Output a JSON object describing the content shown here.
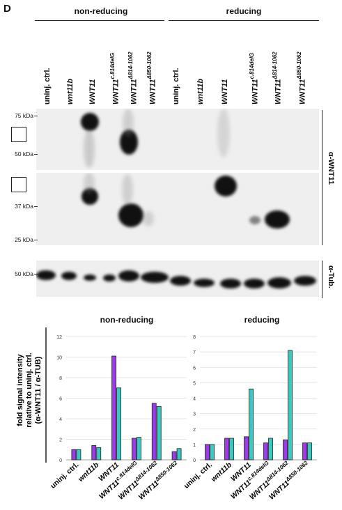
{
  "panel_letter": "D",
  "conditions": [
    "non-reducing",
    "reducing"
  ],
  "lanes": [
    {
      "base": "uninj. ctrl.",
      "sup": "",
      "italic": false
    },
    {
      "base": "wnt11b",
      "sup": "",
      "italic": true
    },
    {
      "base": "WNT11",
      "sup": "",
      "italic": true
    },
    {
      "base": "WNT11",
      "sup": "c.814delG",
      "italic": true
    },
    {
      "base": "WNT11",
      "sup": "Δ814-1062",
      "italic": true
    },
    {
      "base": "WNT11",
      "sup": "Δ850-1062",
      "italic": true
    }
  ],
  "markers": {
    "blot1": [
      "75 kDa",
      "50 kDa"
    ],
    "blot2": [
      "37 kDa",
      "25 kDa"
    ],
    "blot3": [
      "50 kDa"
    ]
  },
  "antibodies": {
    "wnt11": "α-WNT11",
    "tub": "α-Tub."
  },
  "colors": {
    "purple": "#9a3de6",
    "teal": "#3cc8c0"
  },
  "ylabel_lines": [
    "fold signal intensity",
    "relative to uninj. ctrl.",
    "(α-WNT11 / α-TUB)"
  ],
  "chart_data": [
    {
      "type": "bar",
      "title": "non-reducing",
      "categories": [
        "uninj. ctrl.",
        "wnt11b",
        "WNT11",
        "WNT11c.814delG",
        "WNT11Δ814-1062",
        "WNT11Δ850-1062"
      ],
      "series": [
        {
          "color": "#9a3de6",
          "values": [
            1.0,
            1.4,
            10.1,
            2.1,
            5.5,
            0.8
          ]
        },
        {
          "color": "#3cc8c0",
          "values": [
            1.0,
            1.2,
            7.0,
            2.2,
            5.2,
            1.1
          ]
        }
      ],
      "yticks": [
        0,
        2,
        4,
        6,
        8,
        10,
        12
      ],
      "ylim": [
        0,
        12
      ],
      "grid": true
    },
    {
      "type": "bar",
      "title": "reducing",
      "categories": [
        "uninj. ctrl.",
        "wnt11b",
        "WNT11",
        "WNT11c.814delG",
        "WNT11Δ814-1062",
        "WNT11Δ850-1062"
      ],
      "series": [
        {
          "color": "#9a3de6",
          "values": [
            1.0,
            1.4,
            1.5,
            1.1,
            1.3,
            1.1
          ]
        },
        {
          "color": "#3cc8c0",
          "values": [
            1.0,
            1.4,
            4.6,
            1.4,
            7.1,
            1.1
          ]
        }
      ],
      "yticks": [
        0,
        1,
        2,
        3,
        4,
        5,
        6,
        7,
        8
      ],
      "ylim": [
        0,
        8
      ],
      "grid": true
    }
  ]
}
